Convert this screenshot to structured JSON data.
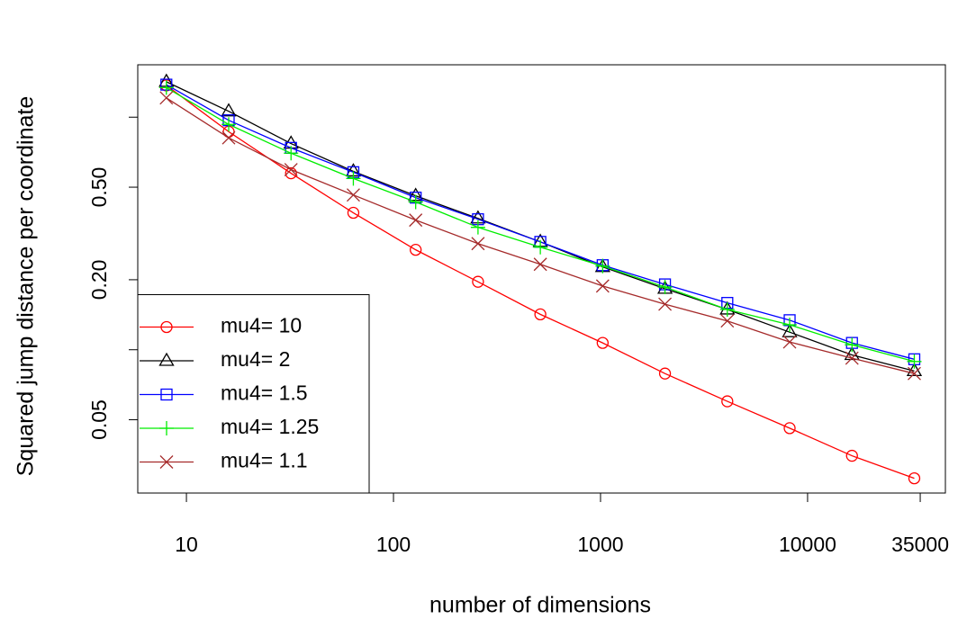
{
  "chart_data": {
    "type": "line",
    "x_label": "number of dimensions",
    "y_label": "Squared jump distance per coordinate",
    "x": [
      8,
      16,
      32,
      64,
      128,
      256,
      512,
      1024,
      2048,
      4096,
      8192,
      16384,
      32768
    ],
    "series": [
      {
        "name": "mu4= 10",
        "color": "#ff0000",
        "marker": "circle",
        "values": [
          1.37,
          0.866,
          0.574,
          0.388,
          0.269,
          0.196,
          0.142,
          0.107,
          0.079,
          0.06,
          0.046,
          0.035,
          0.028
        ]
      },
      {
        "name": "mu4= 2",
        "color": "#000000",
        "marker": "triangle",
        "values": [
          1.42,
          1.06,
          0.77,
          0.585,
          0.459,
          0.367,
          0.291,
          0.227,
          0.183,
          0.149,
          0.119,
          0.095,
          0.081
        ]
      },
      {
        "name": "mu4= 1.5",
        "color": "#0000ff",
        "marker": "square",
        "values": [
          1.38,
          0.97,
          0.738,
          0.58,
          0.451,
          0.364,
          0.291,
          0.231,
          0.191,
          0.159,
          0.134,
          0.107,
          0.091
        ]
      },
      {
        "name": "mu4= 1.25",
        "color": "#00ee00",
        "marker": "plus",
        "values": [
          1.34,
          0.931,
          0.7,
          0.545,
          0.432,
          0.336,
          0.276,
          0.229,
          0.186,
          0.149,
          0.128,
          0.105,
          0.089
        ]
      },
      {
        "name": "mu4= 1.1",
        "color": "#a52a2a",
        "marker": "cross",
        "values": [
          1.21,
          0.815,
          0.595,
          0.463,
          0.361,
          0.286,
          0.233,
          0.188,
          0.157,
          0.133,
          0.108,
          0.092,
          0.079
        ]
      }
    ],
    "xlog": true,
    "ylog": true,
    "xlim": [
      5.82,
      46300
    ],
    "ylim": [
      0.0242,
      1.68
    ],
    "xticks": [
      10,
      100,
      1000,
      10000,
      35000
    ],
    "yticks": [
      0.05,
      {
        "value": 0.1,
        "label": null
      },
      {
        "value": 0.2,
        "label": "0.20"
      },
      {
        "value": 0.5,
        "label": "0.50"
      },
      {
        "value": 1,
        "label": null
      }
    ],
    "legend": "bottomleft",
    "grid": false
  }
}
